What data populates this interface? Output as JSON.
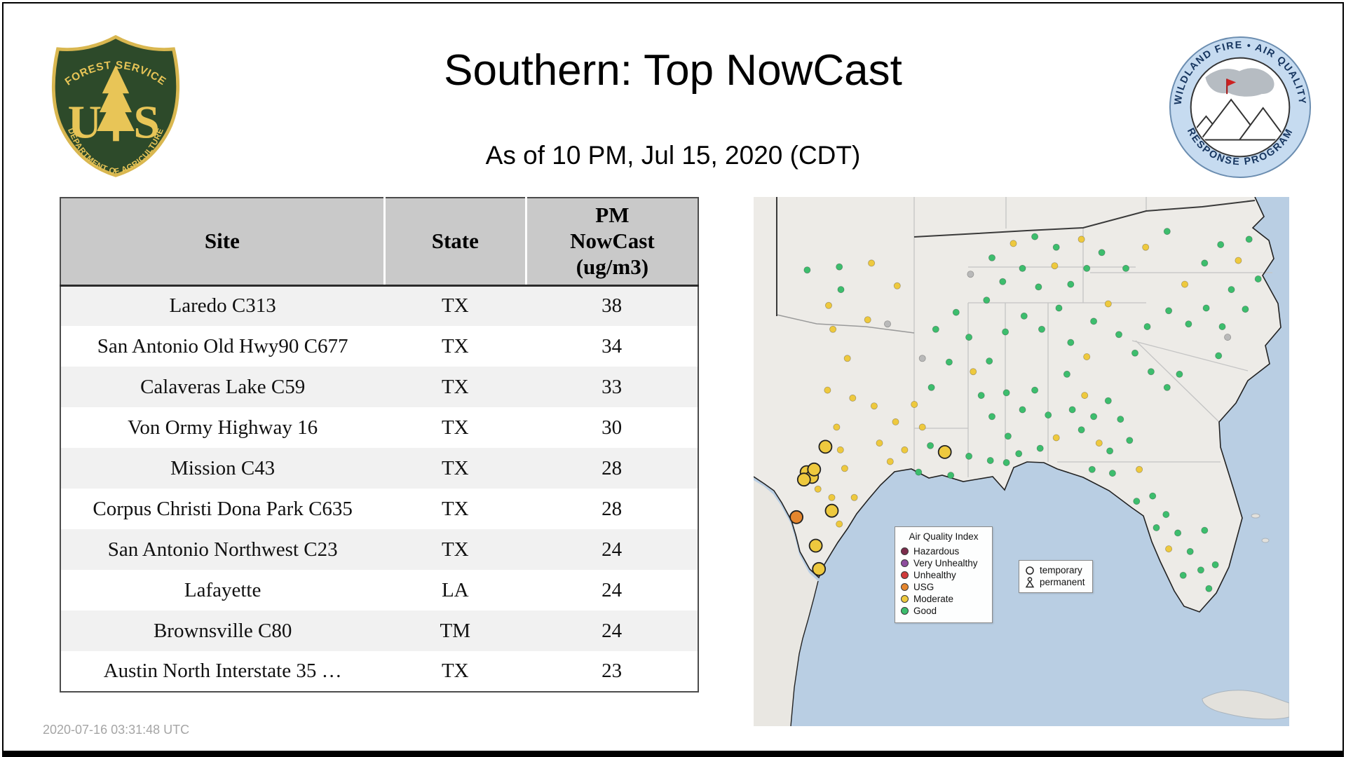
{
  "header": {
    "title": "Southern: Top NowCast",
    "subtitle": "As of 10 PM, Jul 15, 2020 (CDT)"
  },
  "footer": {
    "timestamp": "2020-07-16 03:31:48 UTC"
  },
  "logos": {
    "usfs": {
      "top": "FOREST SERVICE",
      "left_letter": "U",
      "right_letter": "S",
      "bottom": "DEPARTMENT OF AGRICULTURE"
    },
    "wfaqrp": {
      "top": "WILDLAND FIRE • AIR QUALITY",
      "bottom": "RESPONSE PROGRAM"
    }
  },
  "table": {
    "columns": [
      {
        "label": "Site"
      },
      {
        "label": "State"
      },
      {
        "label": "PM NowCast (ug/m3)",
        "lines": [
          "PM",
          "NowCast",
          "(ug/m3)"
        ]
      }
    ],
    "rows": [
      [
        "Laredo C313",
        "TX",
        "38"
      ],
      [
        "San Antonio Old Hwy90 C677",
        "TX",
        "34"
      ],
      [
        "Calaveras Lake C59",
        "TX",
        "33"
      ],
      [
        "Von Ormy Highway 16",
        "TX",
        "30"
      ],
      [
        "Mission C43",
        "TX",
        "28"
      ],
      [
        "Corpus Christi Dona Park C635",
        "TX",
        "28"
      ],
      [
        "San Antonio Northwest C23",
        "TX",
        "24"
      ],
      [
        "Lafayette",
        "LA",
        "24"
      ],
      [
        "Brownsville C80",
        "TM",
        "24"
      ],
      [
        "Austin North Interstate 35 …",
        "TX",
        "23"
      ]
    ]
  },
  "map": {
    "aqi_legend": {
      "title": "Air Quality Index",
      "items": [
        {
          "label": "Hazardous",
          "color": "#7c2c4c"
        },
        {
          "label": "Very Unhealthy",
          "color": "#8e4d9e"
        },
        {
          "label": "Unhealthy",
          "color": "#d03b3b"
        },
        {
          "label": "USG",
          "color": "#e5862e"
        },
        {
          "label": "Moderate",
          "color": "#eec93e"
        },
        {
          "label": "Good",
          "color": "#3dbd6d"
        }
      ]
    },
    "marker_legend": {
      "temporary": "temporary",
      "permanent": "permanent"
    },
    "colors": {
      "good": "#3dbd6d",
      "moderate": "#eec93e",
      "usg": "#e5862e",
      "none": "#b9b9b9",
      "water": "#b9cee3",
      "land": "#edebe7"
    },
    "markers": [
      [
        16.3,
        17.5,
        "good",
        "s"
      ],
      [
        10.0,
        13.8,
        "good",
        "s"
      ],
      [
        16.0,
        13.2,
        "good",
        "s"
      ],
      [
        22.0,
        12.5,
        "moderate",
        "s"
      ],
      [
        26.8,
        16.8,
        "moderate",
        "s"
      ],
      [
        14.0,
        20.5,
        "moderate",
        "s"
      ],
      [
        14.8,
        25.0,
        "moderate",
        "s"
      ],
      [
        21.3,
        23.2,
        "moderate",
        "s"
      ],
      [
        25.0,
        24.0,
        "none",
        "s"
      ],
      [
        17.5,
        30.5,
        "moderate",
        "s"
      ],
      [
        13.8,
        36.5,
        "moderate",
        "s"
      ],
      [
        18.5,
        38.0,
        "moderate",
        "s"
      ],
      [
        22.5,
        39.5,
        "moderate",
        "s"
      ],
      [
        15.5,
        43.5,
        "moderate",
        "s"
      ],
      [
        13.0,
        47.0,
        "moderate",
        "s"
      ],
      [
        16.2,
        47.8,
        "moderate",
        "s"
      ],
      [
        17.0,
        51.3,
        "moderate",
        "s"
      ],
      [
        23.5,
        46.5,
        "moderate",
        "s"
      ],
      [
        26.5,
        42.5,
        "moderate",
        "s"
      ],
      [
        30.0,
        39.2,
        "moderate",
        "s"
      ],
      [
        25.5,
        50.0,
        "moderate",
        "s"
      ],
      [
        28.2,
        47.8,
        "moderate",
        "s"
      ],
      [
        12.0,
        55.2,
        "moderate",
        "s"
      ],
      [
        14.6,
        56.8,
        "moderate",
        "s"
      ],
      [
        18.8,
        56.8,
        "moderate",
        "s"
      ],
      [
        16.0,
        61.8,
        "moderate",
        "s"
      ],
      [
        31.5,
        30.5,
        "none",
        "s"
      ],
      [
        34.0,
        25.0,
        "good",
        "s"
      ],
      [
        37.8,
        21.8,
        "good",
        "s"
      ],
      [
        40.2,
        26.5,
        "good",
        "s"
      ],
      [
        36.5,
        31.2,
        "good",
        "s"
      ],
      [
        33.2,
        36.0,
        "good",
        "s"
      ],
      [
        33.0,
        47.0,
        "good",
        "s"
      ],
      [
        30.8,
        52.0,
        "good",
        "s"
      ],
      [
        36.8,
        52.6,
        "good",
        "s"
      ],
      [
        40.2,
        49.0,
        "good",
        "s"
      ],
      [
        31.5,
        43.5,
        "moderate",
        "s"
      ],
      [
        42.5,
        37.5,
        "good",
        "s"
      ],
      [
        44.5,
        41.5,
        "good",
        "s"
      ],
      [
        47.2,
        37.0,
        "good",
        "s"
      ],
      [
        44.0,
        31.0,
        "good",
        "s"
      ],
      [
        47.5,
        45.2,
        "good",
        "s"
      ],
      [
        50.2,
        40.2,
        "good",
        "s"
      ],
      [
        52.5,
        36.5,
        "good",
        "s"
      ],
      [
        55.0,
        41.2,
        "good",
        "s"
      ],
      [
        49.5,
        48.5,
        "good",
        "s"
      ],
      [
        53.5,
        47.5,
        "good",
        "s"
      ],
      [
        56.5,
        45.5,
        "moderate",
        "s"
      ],
      [
        44.2,
        49.8,
        "good",
        "s"
      ],
      [
        47.2,
        50.2,
        "good",
        "s"
      ],
      [
        41.0,
        33.0,
        "moderate",
        "s"
      ],
      [
        43.5,
        19.5,
        "good",
        "s"
      ],
      [
        46.5,
        16.0,
        "good",
        "s"
      ],
      [
        50.2,
        13.5,
        "good",
        "s"
      ],
      [
        53.2,
        17.0,
        "good",
        "s"
      ],
      [
        56.2,
        13.0,
        "moderate",
        "s"
      ],
      [
        59.2,
        16.5,
        "good",
        "s"
      ],
      [
        62.2,
        13.5,
        "good",
        "s"
      ],
      [
        48.5,
        8.8,
        "moderate",
        "s"
      ],
      [
        52.5,
        7.5,
        "good",
        "s"
      ],
      [
        56.5,
        9.5,
        "good",
        "s"
      ],
      [
        61.2,
        8.0,
        "moderate",
        "s"
      ],
      [
        44.5,
        11.5,
        "good",
        "s"
      ],
      [
        40.5,
        14.6,
        "none",
        "s"
      ],
      [
        65.0,
        10.5,
        "good",
        "s"
      ],
      [
        57.0,
        21.0,
        "good",
        "s"
      ],
      [
        53.8,
        25.0,
        "good",
        "s"
      ],
      [
        50.5,
        22.5,
        "good",
        "s"
      ],
      [
        59.2,
        27.5,
        "good",
        "s"
      ],
      [
        47.0,
        25.5,
        "good",
        "s"
      ],
      [
        58.5,
        33.5,
        "good",
        "s"
      ],
      [
        61.8,
        37.5,
        "moderate",
        "s"
      ],
      [
        63.5,
        41.5,
        "good",
        "s"
      ],
      [
        66.2,
        38.5,
        "good",
        "s"
      ],
      [
        68.5,
        42.0,
        "good",
        "s"
      ],
      [
        64.5,
        46.5,
        "moderate",
        "s"
      ],
      [
        61.2,
        44.0,
        "good",
        "s"
      ],
      [
        66.5,
        48.0,
        "good",
        "s"
      ],
      [
        70.2,
        46.0,
        "good",
        "s"
      ],
      [
        59.5,
        40.2,
        "good",
        "s"
      ],
      [
        62.2,
        30.2,
        "moderate",
        "s"
      ],
      [
        72.0,
        51.5,
        "moderate",
        "s"
      ],
      [
        67.0,
        52.2,
        "good",
        "s"
      ],
      [
        63.2,
        51.5,
        "good",
        "s"
      ],
      [
        74.5,
        56.5,
        "good",
        "s"
      ],
      [
        77.0,
        60.0,
        "good",
        "s"
      ],
      [
        79.2,
        63.5,
        "good",
        "s"
      ],
      [
        81.5,
        67.0,
        "good",
        "s"
      ],
      [
        83.5,
        70.5,
        "good",
        "s"
      ],
      [
        80.2,
        71.5,
        "good",
        "s"
      ],
      [
        77.5,
        66.5,
        "moderate",
        "s"
      ],
      [
        75.2,
        62.5,
        "good",
        "s"
      ],
      [
        85.0,
        74.0,
        "good",
        "s"
      ],
      [
        86.2,
        69.5,
        "good",
        "s"
      ],
      [
        84.2,
        63.0,
        "good",
        "s"
      ],
      [
        71.5,
        57.5,
        "good",
        "s"
      ],
      [
        74.2,
        33.0,
        "good",
        "s"
      ],
      [
        77.2,
        36.0,
        "good",
        "s"
      ],
      [
        79.5,
        33.5,
        "good",
        "s"
      ],
      [
        71.2,
        29.5,
        "good",
        "s"
      ],
      [
        68.2,
        26.0,
        "good",
        "s"
      ],
      [
        73.5,
        24.5,
        "good",
        "s"
      ],
      [
        77.5,
        21.5,
        "good",
        "s"
      ],
      [
        81.2,
        24.0,
        "good",
        "s"
      ],
      [
        84.5,
        21.0,
        "good",
        "s"
      ],
      [
        87.5,
        24.5,
        "good",
        "s"
      ],
      [
        80.5,
        16.5,
        "moderate",
        "s"
      ],
      [
        84.2,
        12.5,
        "good",
        "s"
      ],
      [
        87.2,
        9.0,
        "good",
        "s"
      ],
      [
        90.5,
        12.0,
        "moderate",
        "s"
      ],
      [
        92.5,
        8.0,
        "good",
        "s"
      ],
      [
        89.2,
        17.5,
        "good",
        "s"
      ],
      [
        91.8,
        21.2,
        "good",
        "s"
      ],
      [
        66.2,
        20.2,
        "moderate",
        "s"
      ],
      [
        63.5,
        23.5,
        "good",
        "s"
      ],
      [
        69.5,
        13.5,
        "good",
        "s"
      ],
      [
        73.2,
        9.5,
        "moderate",
        "s"
      ],
      [
        77.2,
        6.5,
        "good",
        "s"
      ],
      [
        94.2,
        15.5,
        "good",
        "s"
      ],
      [
        86.8,
        30.0,
        "good",
        "s"
      ],
      [
        88.5,
        26.5,
        "none",
        "s"
      ],
      [
        8.0,
        60.5,
        "usg",
        "l"
      ],
      [
        9.9,
        52.0,
        "moderate",
        "l"
      ],
      [
        10.9,
        52.9,
        "moderate",
        "l"
      ],
      [
        9.4,
        53.4,
        "moderate",
        "l"
      ],
      [
        11.3,
        51.5,
        "moderate",
        "l"
      ],
      [
        13.4,
        47.2,
        "moderate",
        "l"
      ],
      [
        14.6,
        59.3,
        "moderate",
        "l"
      ],
      [
        11.6,
        65.9,
        "moderate",
        "l"
      ],
      [
        12.2,
        70.3,
        "moderate",
        "l"
      ],
      [
        35.7,
        48.2,
        "moderate",
        "l"
      ]
    ]
  }
}
